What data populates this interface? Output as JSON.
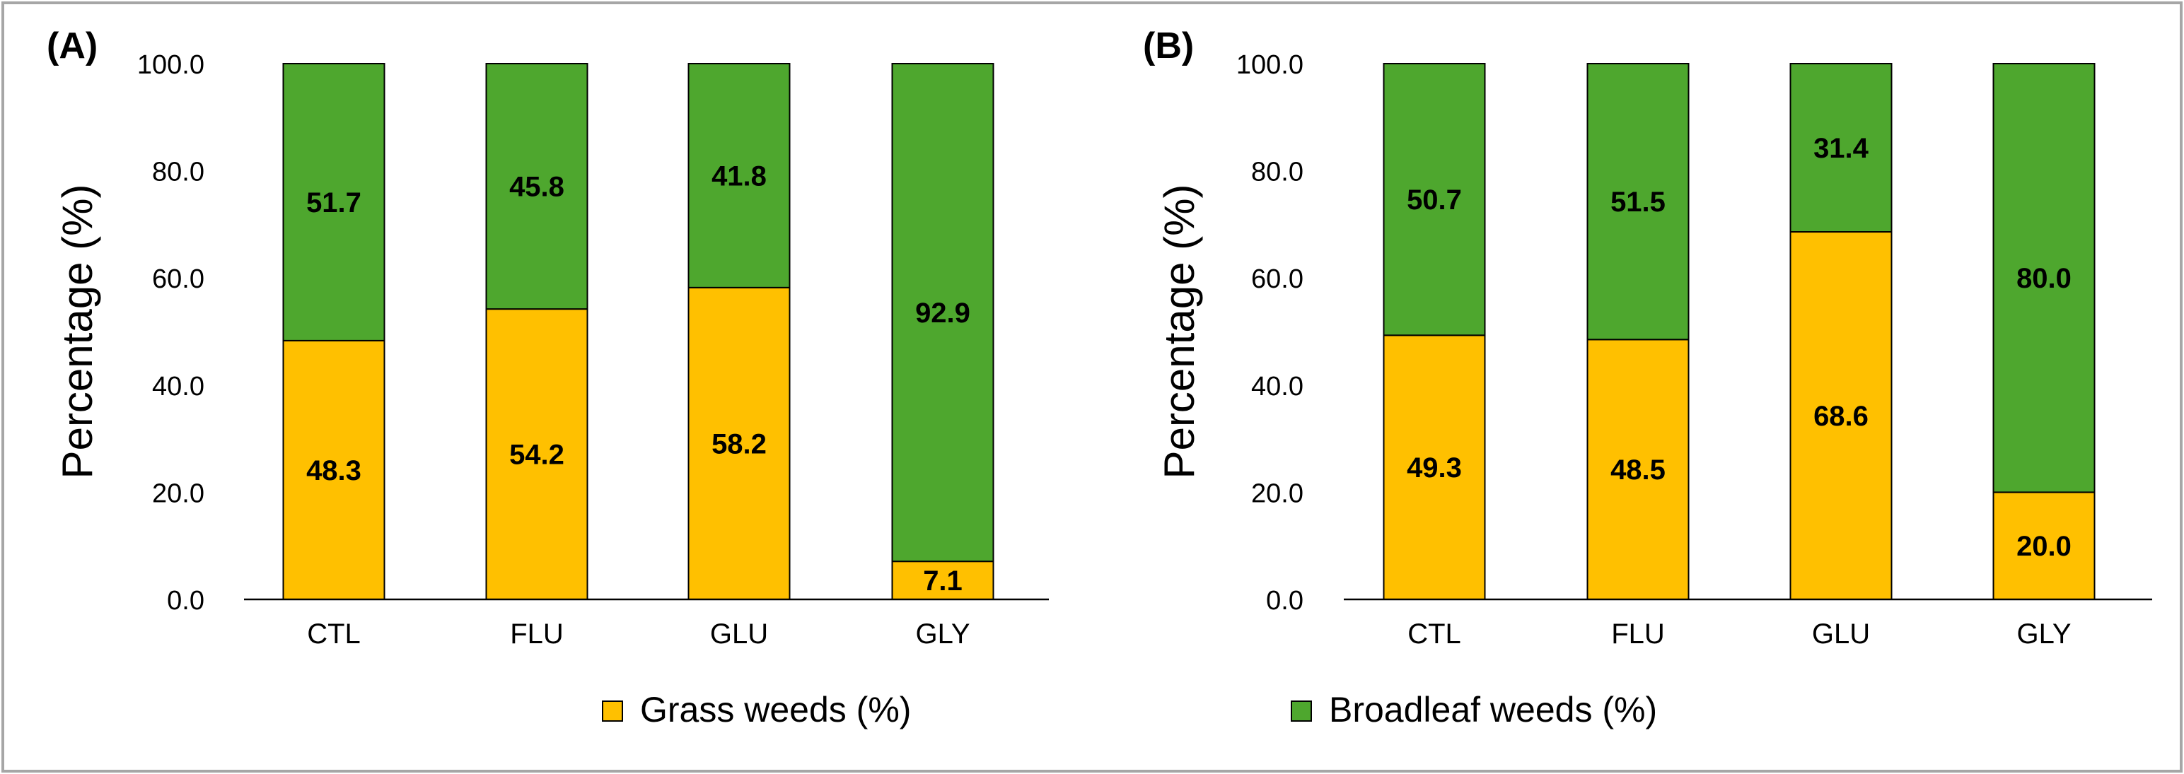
{
  "colors": {
    "grass": "#FFC000",
    "broadleaf": "#4EA72E",
    "frame": "#A6A6A6",
    "axis": "#000000"
  },
  "legend": {
    "grass_label": "Grass weeds (%)",
    "broadleaf_label": "Broadleaf weeds (%)"
  },
  "chart_data": [
    {
      "type": "bar",
      "stacked": true,
      "panel_label": "(A)",
      "ylabel": "Percentage (%)",
      "xlabel": "",
      "ylim": [
        0,
        100
      ],
      "yticks": [
        "0.0",
        "20.0",
        "40.0",
        "60.0",
        "80.0",
        "100.0"
      ],
      "categories": [
        "CTL",
        "FLU",
        "GLU",
        "GLY"
      ],
      "series": [
        {
          "name": "Grass weeds (%)",
          "values": [
            48.3,
            54.2,
            58.2,
            7.1
          ]
        },
        {
          "name": "Broadleaf weeds (%)",
          "values": [
            51.7,
            45.8,
            41.8,
            92.9
          ]
        }
      ],
      "data_labels": {
        "grass": [
          "48.3",
          "54.2",
          "58.2",
          "7.1"
        ],
        "broadleaf": [
          "51.7",
          "45.8",
          "41.8",
          "92.9"
        ]
      }
    },
    {
      "type": "bar",
      "stacked": true,
      "panel_label": "(B)",
      "ylabel": "Percentage (%)",
      "xlabel": "",
      "ylim": [
        0,
        100
      ],
      "yticks": [
        "0.0",
        "20.0",
        "40.0",
        "60.0",
        "80.0",
        "100.0"
      ],
      "categories": [
        "CTL",
        "FLU",
        "GLU",
        "GLY"
      ],
      "series": [
        {
          "name": "Grass weeds (%)",
          "values": [
            49.3,
            48.5,
            68.6,
            20.0
          ]
        },
        {
          "name": "Broadleaf weeds (%)",
          "values": [
            50.7,
            51.5,
            31.4,
            80.0
          ]
        }
      ],
      "data_labels": {
        "grass": [
          "49.3",
          "48.5",
          "68.6",
          "20.0"
        ],
        "broadleaf": [
          "50.7",
          "51.5",
          "31.4",
          "80.0"
        ]
      }
    }
  ]
}
